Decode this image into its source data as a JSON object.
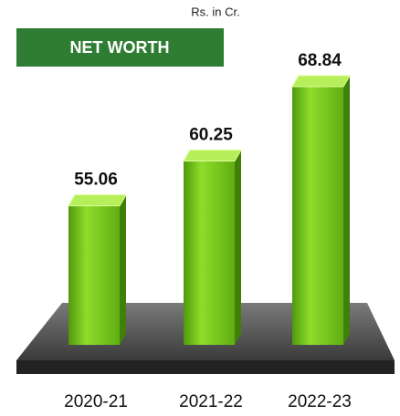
{
  "chart_data": {
    "type": "bar3d",
    "title": "NET WORTH",
    "subtitle": "Rs. in Cr.",
    "categories": [
      "2020-21",
      "2021-22",
      "2022-23"
    ],
    "values": [
      55.06,
      60.25,
      68.84
    ],
    "color": "#6cc417",
    "ylim": [
      39,
      72
    ]
  }
}
